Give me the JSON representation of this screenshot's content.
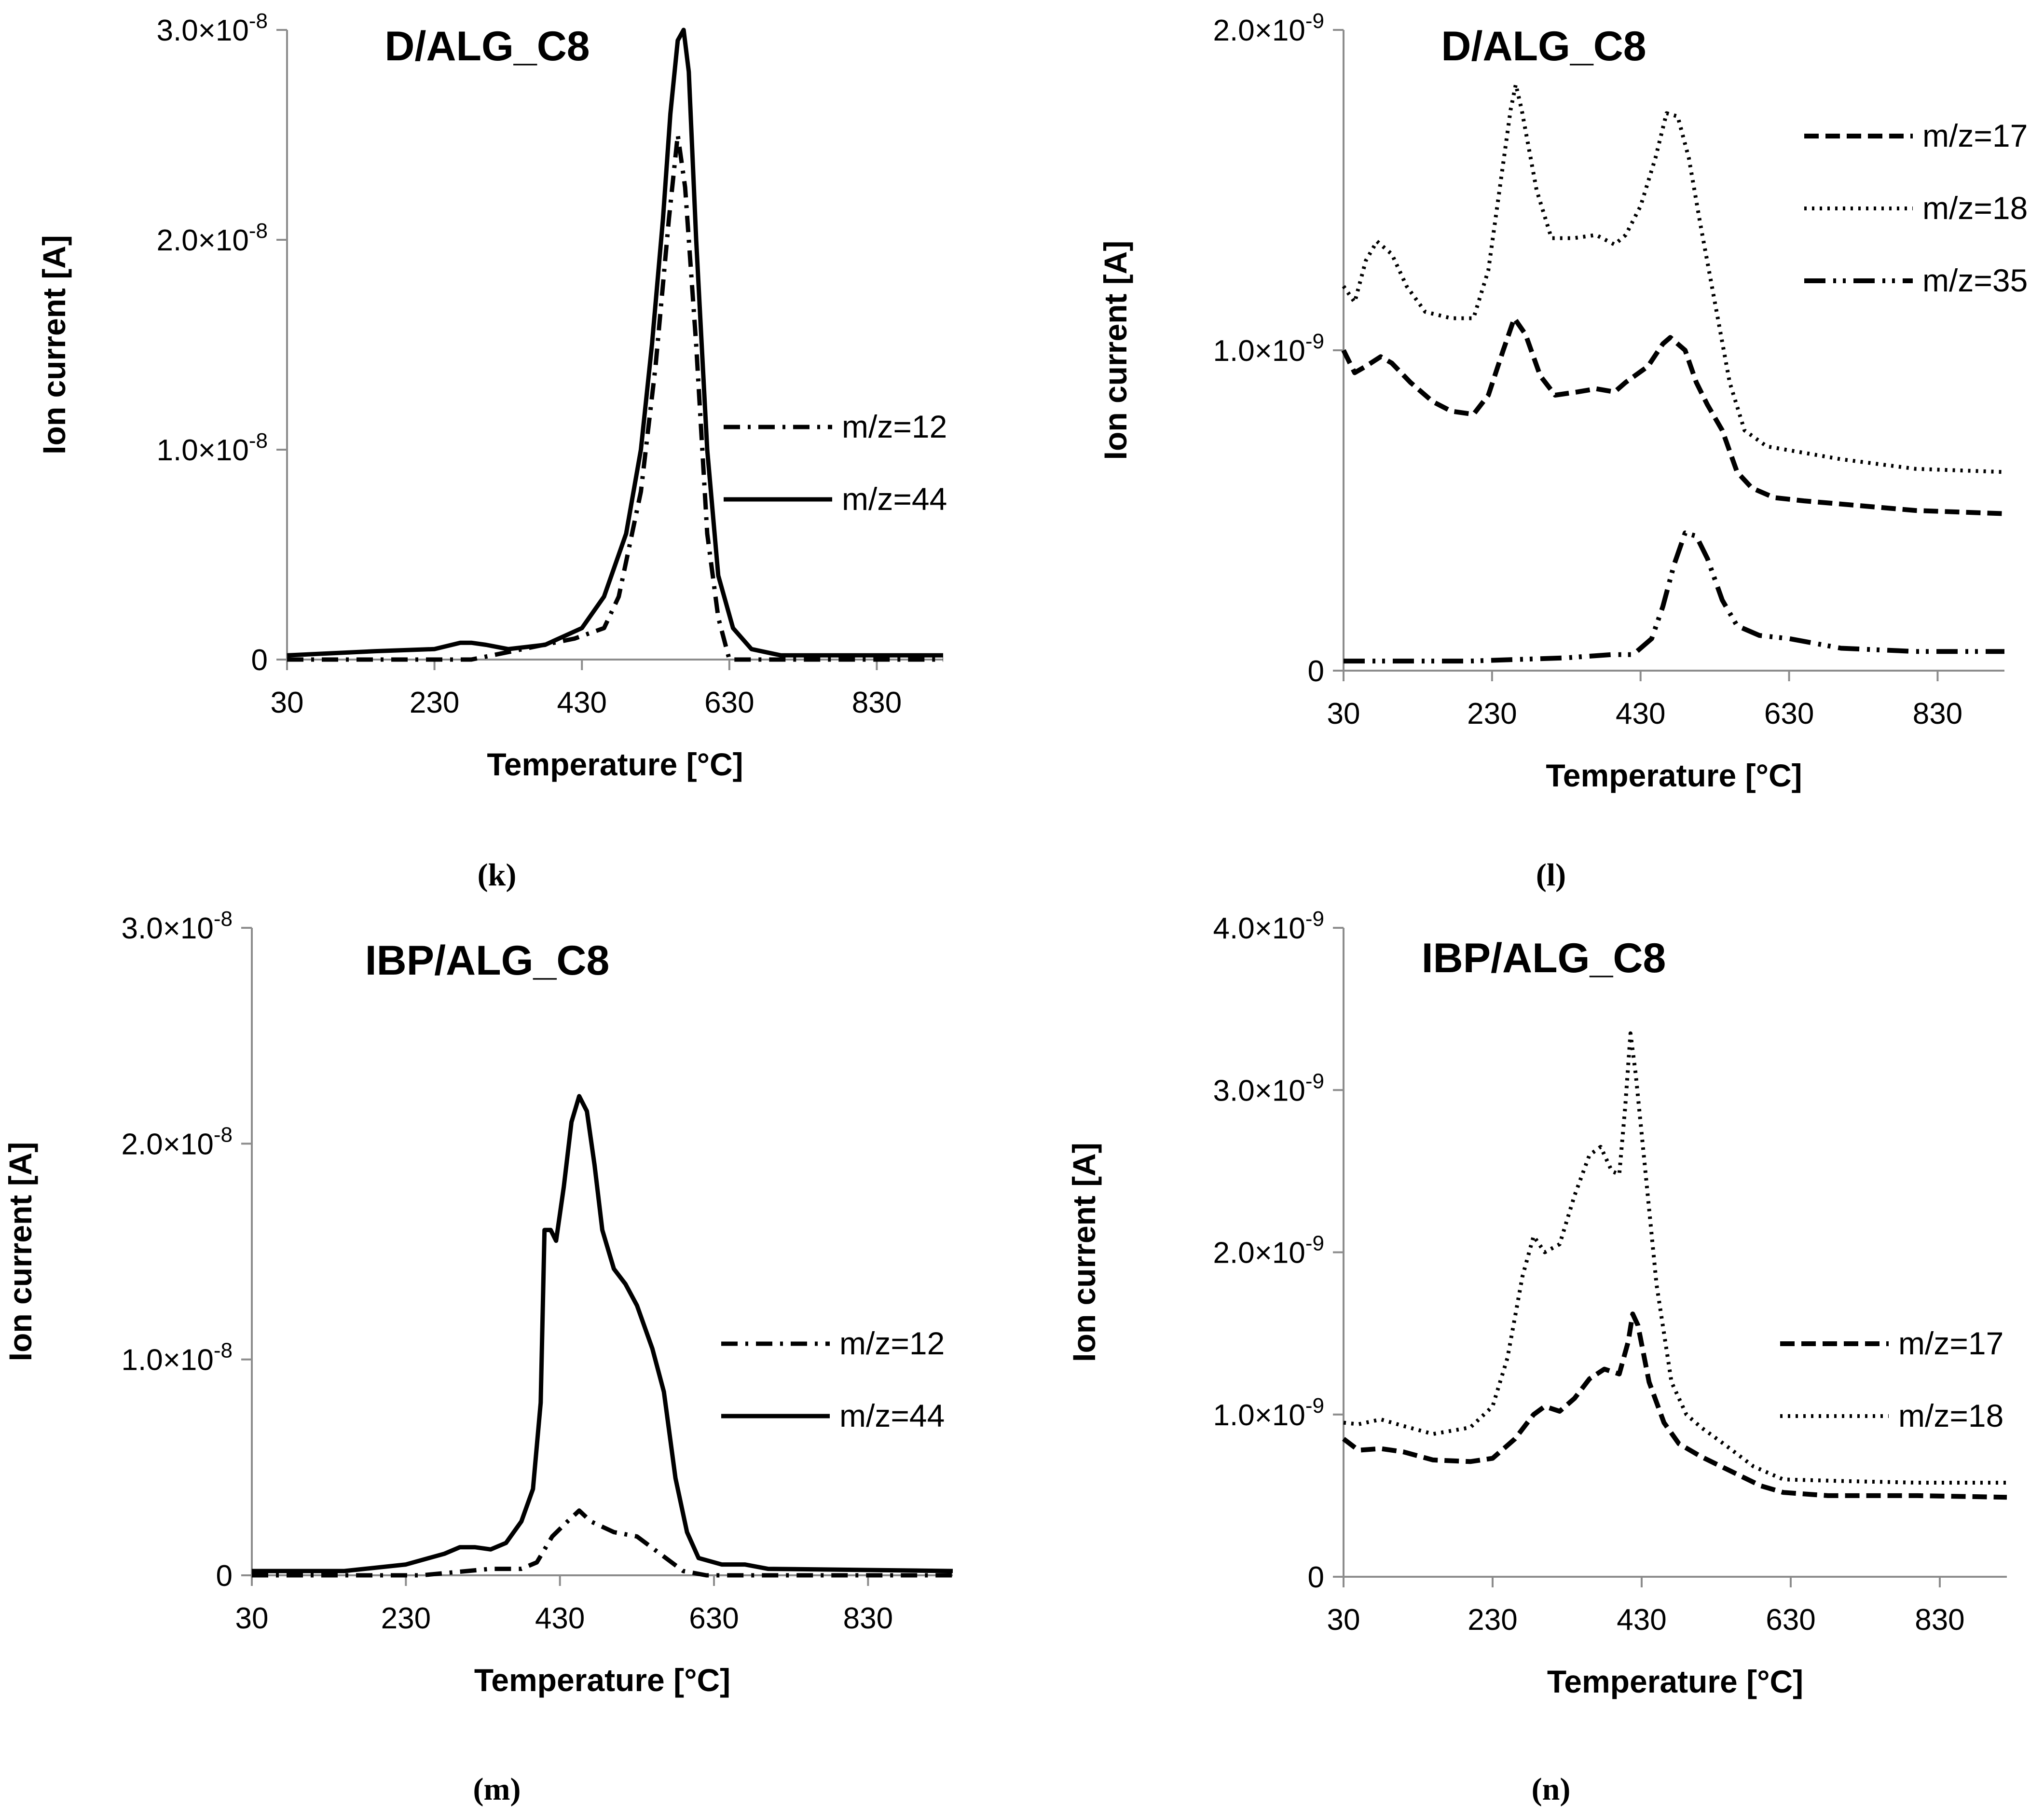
{
  "figure_captions": [
    "(k)",
    "(l)",
    "(m)",
    "(n)"
  ],
  "chart_data": [
    {
      "panel": "(k)",
      "type": "line",
      "title": "D/ALG_C8",
      "xlabel": "Temperature [°C]",
      "ylabel": "Ion current [A]",
      "xlim": [
        30,
        920
      ],
      "ylim": [
        0,
        3e-08
      ],
      "x_ticks": [
        "30",
        "230",
        "430",
        "630",
        "830"
      ],
      "y_ticks": [
        "0",
        "1.0×10",
        "2.0×10",
        "3.0×10"
      ],
      "y_tick_exponent": "-8",
      "legend_position": "right",
      "series": [
        {
          "name": "m/z=12",
          "style": "dash-dot",
          "points": [
            [
              30,
              0
            ],
            [
              200,
              0
            ],
            [
              280,
              0
            ],
            [
              350,
              5e-10
            ],
            [
              420,
              1e-09
            ],
            [
              460,
              1.5e-09
            ],
            [
              480,
              3e-09
            ],
            [
              510,
              8e-09
            ],
            [
              530,
              1.4e-08
            ],
            [
              548,
              2.1e-08
            ],
            [
              560,
              2.5e-08
            ],
            [
              570,
              2.25e-08
            ],
            [
              585,
              1.5e-08
            ],
            [
              600,
              6e-09
            ],
            [
              615,
              2e-09
            ],
            [
              630,
              0
            ],
            [
              920,
              0
            ]
          ]
        },
        {
          "name": "m/z=44",
          "style": "solid",
          "points": [
            [
              30,
              2e-10
            ],
            [
              150,
              4e-10
            ],
            [
              230,
              5e-10
            ],
            [
              265,
              8e-10
            ],
            [
              280,
              8e-10
            ],
            [
              300,
              7e-10
            ],
            [
              330,
              5e-10
            ],
            [
              380,
              7e-10
            ],
            [
              430,
              1.5e-09
            ],
            [
              460,
              3e-09
            ],
            [
              490,
              6e-09
            ],
            [
              510,
              1e-08
            ],
            [
              525,
              1.5e-08
            ],
            [
              540,
              2.1e-08
            ],
            [
              550,
              2.6e-08
            ],
            [
              560,
              2.95e-08
            ],
            [
              568,
              3e-08
            ],
            [
              575,
              2.8e-08
            ],
            [
              585,
              2e-08
            ],
            [
              600,
              1e-08
            ],
            [
              615,
              4e-09
            ],
            [
              635,
              1.5e-09
            ],
            [
              660,
              5e-10
            ],
            [
              700,
              2e-10
            ],
            [
              920,
              2e-10
            ]
          ]
        }
      ]
    },
    {
      "panel": "(l)",
      "type": "line",
      "title": "D/ALG_C8",
      "xlabel": "Temperature [°C]",
      "ylabel": "Ion current [A]",
      "xlim": [
        30,
        920
      ],
      "ylim": [
        0,
        2e-09
      ],
      "x_ticks": [
        "30",
        "230",
        "430",
        "630",
        "830"
      ],
      "y_ticks": [
        "0",
        "1.0×10",
        "2.0×10"
      ],
      "y_tick_exponent": "-9",
      "legend_position": "top-right",
      "series": [
        {
          "name": "m/z=17",
          "style": "dashed",
          "points": [
            [
              30,
              1e-09
            ],
            [
              45,
              9.3e-10
            ],
            [
              60,
              9.5e-10
            ],
            [
              80,
              9.8e-10
            ],
            [
              95,
              9.6e-10
            ],
            [
              120,
              9e-10
            ],
            [
              150,
              8.4e-10
            ],
            [
              175,
              8.1e-10
            ],
            [
              205,
              8e-10
            ],
            [
              225,
              8.6e-10
            ],
            [
              245,
              1e-09
            ],
            [
              260,
              1.1e-09
            ],
            [
              275,
              1.05e-09
            ],
            [
              295,
              9.2e-10
            ],
            [
              315,
              8.6e-10
            ],
            [
              345,
              8.7e-10
            ],
            [
              370,
              8.8e-10
            ],
            [
              395,
              8.7e-10
            ],
            [
              410,
              9e-10
            ],
            [
              440,
              9.5e-10
            ],
            [
              460,
              1.02e-09
            ],
            [
              470,
              1.04e-09
            ],
            [
              490,
              1e-09
            ],
            [
              505,
              9e-10
            ],
            [
              520,
              8.3e-10
            ],
            [
              540,
              7.5e-10
            ],
            [
              560,
              6.2e-10
            ],
            [
              580,
              5.7e-10
            ],
            [
              610,
              5.4e-10
            ],
            [
              650,
              5.3e-10
            ],
            [
              700,
              5.2e-10
            ],
            [
              800,
              5e-10
            ],
            [
              920,
              4.9e-10
            ]
          ]
        },
        {
          "name": "m/z=18",
          "style": "dotted",
          "points": [
            [
              30,
              1.2e-09
            ],
            [
              45,
              1.15e-09
            ],
            [
              60,
              1.28e-09
            ],
            [
              75,
              1.34e-09
            ],
            [
              95,
              1.3e-09
            ],
            [
              115,
              1.2e-09
            ],
            [
              140,
              1.12e-09
            ],
            [
              175,
              1.1e-09
            ],
            [
              205,
              1.1e-09
            ],
            [
              225,
              1.25e-09
            ],
            [
              240,
              1.5e-09
            ],
            [
              255,
              1.75e-09
            ],
            [
              262,
              1.83e-09
            ],
            [
              270,
              1.75e-09
            ],
            [
              290,
              1.5e-09
            ],
            [
              310,
              1.35e-09
            ],
            [
              340,
              1.35e-09
            ],
            [
              370,
              1.36e-09
            ],
            [
              395,
              1.33e-09
            ],
            [
              410,
              1.36e-09
            ],
            [
              430,
              1.45e-09
            ],
            [
              450,
              1.6e-09
            ],
            [
              465,
              1.74e-09
            ],
            [
              480,
              1.73e-09
            ],
            [
              495,
              1.6e-09
            ],
            [
              510,
              1.4e-09
            ],
            [
              530,
              1.15e-09
            ],
            [
              550,
              9e-10
            ],
            [
              570,
              7.5e-10
            ],
            [
              600,
              7e-10
            ],
            [
              650,
              6.8e-10
            ],
            [
              700,
              6.6e-10
            ],
            [
              800,
              6.3e-10
            ],
            [
              920,
              6.2e-10
            ]
          ]
        },
        {
          "name": "m/z=35",
          "style": "dash-dot-dot",
          "points": [
            [
              30,
              3e-11
            ],
            [
              200,
              3e-11
            ],
            [
              330,
              4e-11
            ],
            [
              390,
              5e-11
            ],
            [
              420,
              5e-11
            ],
            [
              445,
              1e-10
            ],
            [
              460,
              2e-10
            ],
            [
              475,
              3.3e-10
            ],
            [
              490,
              4.3e-10
            ],
            [
              505,
              4.2e-10
            ],
            [
              520,
              3.5e-10
            ],
            [
              540,
              2.2e-10
            ],
            [
              560,
              1.4e-10
            ],
            [
              590,
              1.1e-10
            ],
            [
              630,
              1e-10
            ],
            [
              700,
              7e-11
            ],
            [
              800,
              6e-11
            ],
            [
              920,
              6e-11
            ]
          ]
        }
      ]
    },
    {
      "panel": "(m)",
      "type": "line",
      "title": "IBP/ALG_C8",
      "xlabel": "Temperature [°C]",
      "ylabel": "Ion current [A]",
      "xlim": [
        30,
        940
      ],
      "ylim": [
        0,
        3e-08
      ],
      "x_ticks": [
        "30",
        "230",
        "430",
        "630",
        "830"
      ],
      "y_ticks": [
        "0",
        "1.0×10",
        "2.0×10",
        "3.0×10"
      ],
      "y_tick_exponent": "-8",
      "legend_position": "right",
      "series": [
        {
          "name": "m/z=12",
          "style": "dash-dot",
          "points": [
            [
              30,
              0
            ],
            [
              250,
              0
            ],
            [
              340,
              3e-10
            ],
            [
              380,
              3e-10
            ],
            [
              400,
              6e-10
            ],
            [
              420,
              1.8e-09
            ],
            [
              440,
              2.5e-09
            ],
            [
              455,
              3e-09
            ],
            [
              470,
              2.5e-09
            ],
            [
              500,
              2e-09
            ],
            [
              530,
              1.8e-09
            ],
            [
              560,
              1e-09
            ],
            [
              590,
              2e-10
            ],
            [
              620,
              0
            ],
            [
              940,
              0
            ]
          ]
        },
        {
          "name": "m/z=44",
          "style": "solid",
          "points": [
            [
              30,
              2e-10
            ],
            [
              150,
              2e-10
            ],
            [
              230,
              5e-10
            ],
            [
              260,
              8e-10
            ],
            [
              280,
              1e-09
            ],
            [
              300,
              1.3e-09
            ],
            [
              320,
              1.3e-09
            ],
            [
              340,
              1.2e-09
            ],
            [
              360,
              1.5e-09
            ],
            [
              380,
              2.5e-09
            ],
            [
              395,
              4e-09
            ],
            [
              405,
              8e-09
            ],
            [
              410,
              1.6e-08
            ],
            [
              418,
              1.6e-08
            ],
            [
              425,
              1.55e-08
            ],
            [
              435,
              1.8e-08
            ],
            [
              445,
              2.1e-08
            ],
            [
              455,
              2.22e-08
            ],
            [
              465,
              2.15e-08
            ],
            [
              475,
              1.9e-08
            ],
            [
              485,
              1.6e-08
            ],
            [
              500,
              1.42e-08
            ],
            [
              515,
              1.35e-08
            ],
            [
              530,
              1.25e-08
            ],
            [
              550,
              1.05e-08
            ],
            [
              565,
              8.5e-09
            ],
            [
              580,
              4.5e-09
            ],
            [
              595,
              2e-09
            ],
            [
              610,
              8e-10
            ],
            [
              640,
              5e-10
            ],
            [
              670,
              5e-10
            ],
            [
              700,
              3e-10
            ],
            [
              940,
              2e-10
            ]
          ]
        }
      ]
    },
    {
      "panel": "(n)",
      "type": "line",
      "title": "IBP/ALG_C8",
      "xlabel": "Temperature [°C]",
      "ylabel": "Ion current [A]",
      "xlim": [
        30,
        920
      ],
      "ylim": [
        0,
        4e-09
      ],
      "x_ticks": [
        "30",
        "230",
        "430",
        "630",
        "830"
      ],
      "y_ticks": [
        "0",
        "1.0×10",
        "2.0×10",
        "3.0×10",
        "4.0×10"
      ],
      "y_tick_exponent": "-9",
      "legend_position": "right",
      "series": [
        {
          "name": "m/z=17",
          "style": "dashed",
          "points": [
            [
              30,
              8.5e-10
            ],
            [
              50,
              7.8e-10
            ],
            [
              80,
              7.9e-10
            ],
            [
              110,
              7.7e-10
            ],
            [
              150,
              7.2e-10
            ],
            [
              200,
              7.1e-10
            ],
            [
              230,
              7.3e-10
            ],
            [
              260,
              8.5e-10
            ],
            [
              285,
              1e-09
            ],
            [
              300,
              1.05e-09
            ],
            [
              320,
              1.02e-09
            ],
            [
              340,
              1.1e-09
            ],
            [
              360,
              1.22e-09
            ],
            [
              380,
              1.28e-09
            ],
            [
              400,
              1.25e-09
            ],
            [
              412,
              1.45e-09
            ],
            [
              418,
              1.62e-09
            ],
            [
              425,
              1.55e-09
            ],
            [
              440,
              1.2e-09
            ],
            [
              460,
              9.5e-10
            ],
            [
              480,
              8.2e-10
            ],
            [
              510,
              7.4e-10
            ],
            [
              550,
              6.5e-10
            ],
            [
              590,
              5.6e-10
            ],
            [
              620,
              5.2e-10
            ],
            [
              680,
              5e-10
            ],
            [
              800,
              5e-10
            ],
            [
              920,
              4.9e-10
            ]
          ]
        },
        {
          "name": "m/z=18",
          "style": "dotted",
          "points": [
            [
              30,
              9.5e-10
            ],
            [
              50,
              9.4e-10
            ],
            [
              80,
              9.7e-10
            ],
            [
              110,
              9.3e-10
            ],
            [
              150,
              8.8e-10
            ],
            [
              200,
              9.2e-10
            ],
            [
              230,
              1.05e-09
            ],
            [
              250,
              1.35e-09
            ],
            [
              270,
              1.85e-09
            ],
            [
              285,
              2.1e-09
            ],
            [
              300,
              2e-09
            ],
            [
              320,
              2.05e-09
            ],
            [
              340,
              2.35e-09
            ],
            [
              360,
              2.6e-09
            ],
            [
              375,
              2.65e-09
            ],
            [
              390,
              2.5e-09
            ],
            [
              400,
              2.48e-09
            ],
            [
              408,
              2.9e-09
            ],
            [
              415,
              3.35e-09
            ],
            [
              422,
              3.1e-09
            ],
            [
              435,
              2.5e-09
            ],
            [
              450,
              1.8e-09
            ],
            [
              470,
              1.2e-09
            ],
            [
              490,
              1e-09
            ],
            [
              510,
              9.2e-10
            ],
            [
              540,
              8.2e-10
            ],
            [
              580,
              6.8e-10
            ],
            [
              620,
              6e-10
            ],
            [
              700,
              5.9e-10
            ],
            [
              800,
              5.8e-10
            ],
            [
              920,
              5.8e-10
            ]
          ]
        }
      ]
    }
  ]
}
